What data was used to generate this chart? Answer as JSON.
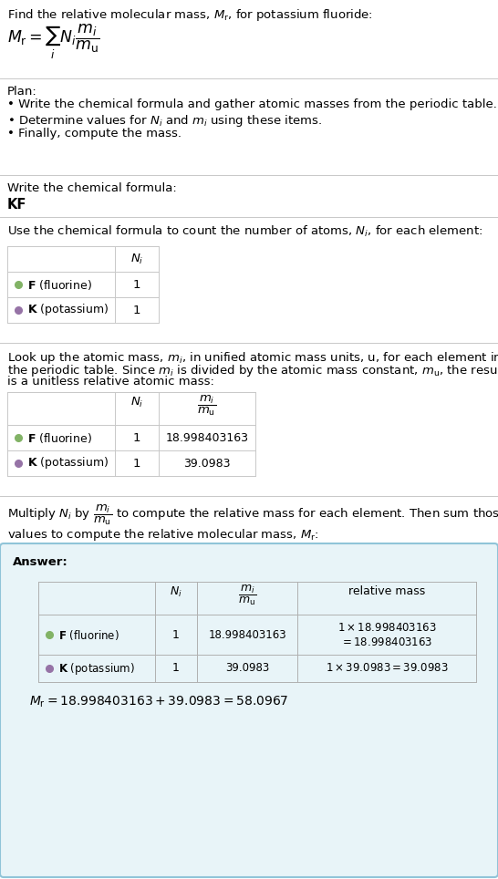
{
  "title_text": "Find the relative molecular mass, $M_{\\mathrm{r}}$, for potassium fluoride:",
  "formula_text": "$M_{\\mathrm{r}} = \\sum_i N_i\\dfrac{m_i}{m_{\\mathrm{u}}}$",
  "plan_header": "Plan:",
  "plan_bullets": [
    "• Write the chemical formula and gather atomic masses from the periodic table.",
    "• Determine values for $N_i$ and $m_i$ using these items.",
    "• Finally, compute the mass."
  ],
  "formula_label": "Write the chemical formula:",
  "formula_value": "KF",
  "count_label": "Use the chemical formula to count the number of atoms, $N_i$, for each element:",
  "lookup_line1": "Look up the atomic mass, $m_i$, in unified atomic mass units, u, for each element in",
  "lookup_line2": "the periodic table. Since $m_i$ is divided by the atomic mass constant, $m_{\\mathrm{u}}$, the result",
  "lookup_line3": "is a unitless relative atomic mass:",
  "multiply_line1": "Multiply $N_i$ by $\\dfrac{m_i}{m_{\\mathrm{u}}}$ to compute the relative mass for each element. Then sum those",
  "multiply_line2": "values to compute the relative molecular mass, $M_{\\mathrm{r}}$:",
  "answer_label": "Answer:",
  "final_eq": "$M_{\\mathrm{r}} = 18.998403163 + 39.0983 = 58.0967$",
  "elements": [
    {
      "symbol": "F",
      "name": "fluorine",
      "color": "#82b366",
      "N_i": "1",
      "mass": "18.998403163",
      "rel1": "$1 \\times 18.998403163$",
      "rel2": "$= 18.998403163$"
    },
    {
      "symbol": "K",
      "name": "potassium",
      "color": "#9673a6",
      "N_i": "1",
      "mass": "39.0983",
      "rel1": "$1 \\times 39.0983 = 39.0983$",
      "rel2": ""
    }
  ],
  "answer_bg": "#e8f4f8",
  "answer_border": "#90c4d8",
  "bg_color": "#ffffff",
  "text_color": "#000000",
  "line_color": "#c8c8c8",
  "fs": 9.5
}
